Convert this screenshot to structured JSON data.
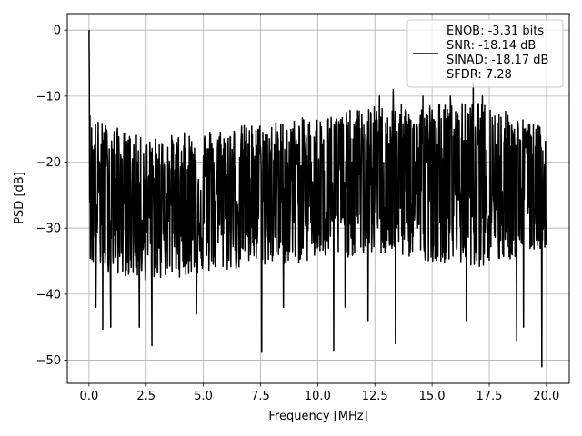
{
  "chart_data": {
    "type": "line",
    "title": "",
    "xlabel": "Frequency [MHz]",
    "ylabel": "PSD [dB]",
    "xlim": [
      -0.95,
      21.0
    ],
    "ylim": [
      -53.5,
      2.5
    ],
    "xticks": [
      0.0,
      2.5,
      5.0,
      7.5,
      10.0,
      12.5,
      15.0,
      17.5,
      20.0
    ],
    "xtick_labels": [
      "0.0",
      "2.5",
      "5.0",
      "7.5",
      "10.0",
      "12.5",
      "15.0",
      "17.5",
      "20.0"
    ],
    "yticks": [
      0,
      -10,
      -20,
      -30,
      -40,
      -50
    ],
    "ytick_labels": [
      "0",
      "−10",
      "−20",
      "−30",
      "−40",
      "−50"
    ],
    "grid": true,
    "legend_position": "top-right",
    "series": [
      {
        "color": "#000000",
        "legend_lines": [
          "ENOB: -3.31 bits",
          "SNR: -18.14 dB",
          "SINAD: -18.17 dB",
          "SFDR: 7.28"
        ],
        "x_range": [
          0.0,
          20.0
        ],
        "peaks": [
          {
            "x": 0.0,
            "y": 0.0
          },
          {
            "x": 0.3,
            "y": -42
          },
          {
            "x": 0.6,
            "y": -45.3
          },
          {
            "x": 0.95,
            "y": -45
          },
          {
            "x": 2.2,
            "y": -45
          },
          {
            "x": 2.75,
            "y": -47.8
          },
          {
            "x": 4.7,
            "y": -43
          },
          {
            "x": 7.55,
            "y": -48.8
          },
          {
            "x": 8.5,
            "y": -42
          },
          {
            "x": 10.7,
            "y": -48.5
          },
          {
            "x": 11.2,
            "y": -42
          },
          {
            "x": 12.2,
            "y": -44
          },
          {
            "x": 13.4,
            "y": -47.5
          },
          {
            "x": 15.8,
            "y": -42
          },
          {
            "x": 16.5,
            "y": -44
          },
          {
            "x": 18.7,
            "y": -47
          },
          {
            "x": 19.0,
            "y": -45
          },
          {
            "x": 19.8,
            "y": -51
          },
          {
            "x": 12.7,
            "y": -10
          },
          {
            "x": 13.3,
            "y": -9
          },
          {
            "x": 14.6,
            "y": -10
          },
          {
            "x": 15.8,
            "y": -10
          },
          {
            "x": 16.8,
            "y": -8
          },
          {
            "x": 17.2,
            "y": -10
          }
        ],
        "profile": [
          {
            "x": 0.0,
            "upper": -13,
            "lower": -36,
            "center": -24
          },
          {
            "x": 2.5,
            "upper": -16.5,
            "lower": -38,
            "center": -26
          },
          {
            "x": 5.0,
            "upper": -15,
            "lower": -37,
            "center": -25
          },
          {
            "x": 7.5,
            "upper": -14,
            "lower": -36,
            "center": -24
          },
          {
            "x": 10.0,
            "upper": -13,
            "lower": -35,
            "center": -23
          },
          {
            "x": 12.5,
            "upper": -11.5,
            "lower": -34,
            "center": -22
          },
          {
            "x": 15.0,
            "upper": -11,
            "lower": -35,
            "center": -22
          },
          {
            "x": 17.5,
            "upper": -11,
            "lower": -36,
            "center": -22
          },
          {
            "x": 20.0,
            "upper": -15,
            "lower": -33,
            "center": -22
          }
        ]
      }
    ]
  }
}
